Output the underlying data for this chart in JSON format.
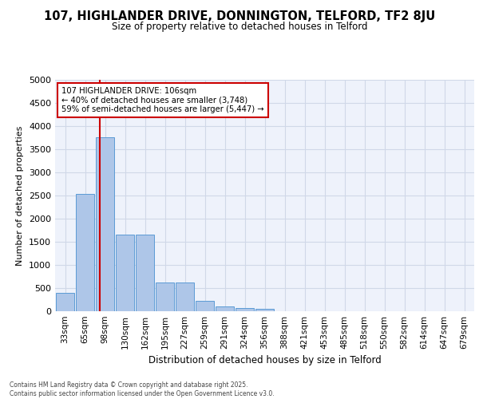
{
  "title_line1": "107, HIGHLANDER DRIVE, DONNINGTON, TELFORD, TF2 8JU",
  "title_line2": "Size of property relative to detached houses in Telford",
  "xlabel": "Distribution of detached houses by size in Telford",
  "ylabel": "Number of detached properties",
  "categories": [
    "33sqm",
    "65sqm",
    "98sqm",
    "130sqm",
    "162sqm",
    "195sqm",
    "227sqm",
    "259sqm",
    "291sqm",
    "324sqm",
    "356sqm",
    "388sqm",
    "421sqm",
    "453sqm",
    "485sqm",
    "518sqm",
    "550sqm",
    "582sqm",
    "614sqm",
    "647sqm",
    "679sqm"
  ],
  "values": [
    390,
    2530,
    3760,
    1650,
    1650,
    620,
    620,
    230,
    110,
    75,
    55,
    0,
    0,
    0,
    0,
    0,
    0,
    0,
    0,
    0,
    0
  ],
  "bar_color": "#aec6e8",
  "bar_edge_color": "#5b9bd5",
  "grid_color": "#d0d8e8",
  "background_color": "#eef2fb",
  "vline_color": "#cc0000",
  "annotation_text": "107 HIGHLANDER DRIVE: 106sqm\n← 40% of detached houses are smaller (3,748)\n59% of semi-detached houses are larger (5,447) →",
  "annotation_box_color": "#cc0000",
  "ylim": [
    0,
    5000
  ],
  "yticks": [
    0,
    500,
    1000,
    1500,
    2000,
    2500,
    3000,
    3500,
    4000,
    4500,
    5000
  ],
  "footer_line1": "Contains HM Land Registry data © Crown copyright and database right 2025.",
  "footer_line2": "Contains public sector information licensed under the Open Government Licence v3.0."
}
